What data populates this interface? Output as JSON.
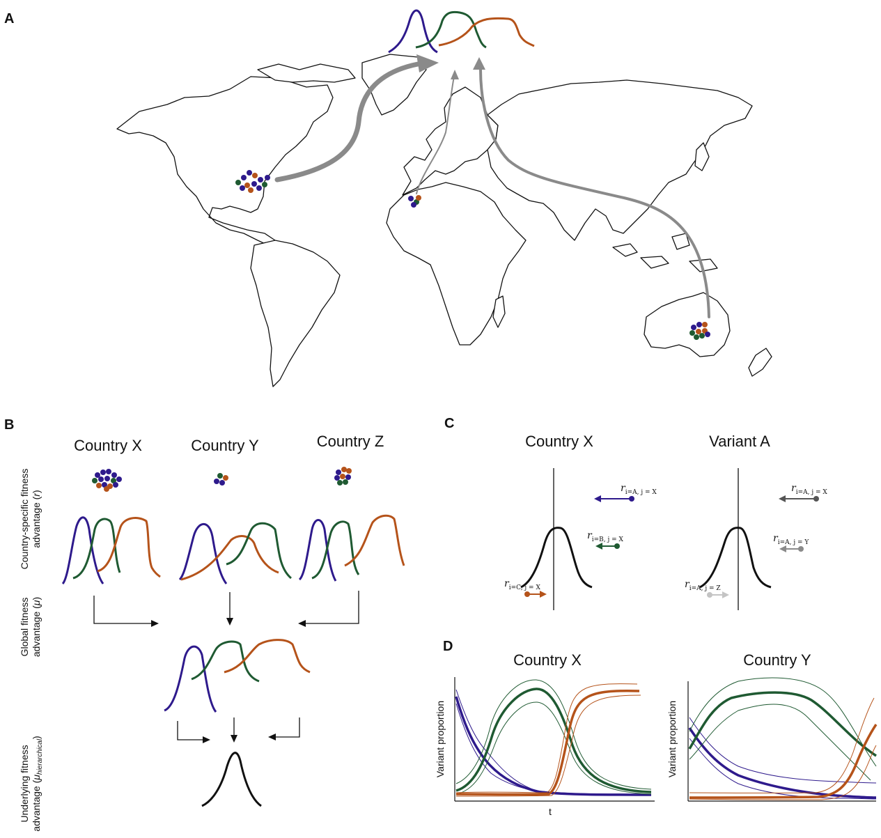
{
  "colors": {
    "variant_a": "#2e1a8c",
    "variant_b": "#1f5a32",
    "variant_c": "#b5531a",
    "arrow_gray": "#8a8a8a",
    "dark_gray": "#555555",
    "light_gray": "#c4c4c4",
    "black": "#111111"
  },
  "panels": {
    "a": {
      "letter": "A"
    },
    "b": {
      "letter": "B",
      "countries": [
        "Country X",
        "Country Y",
        "Country Z"
      ],
      "row_labels": {
        "r_line1": "Country-specific fitness",
        "r_line2": "advantage (",
        "r_sym": "r",
        "r_end": ")",
        "mu_line1": "Global fitness",
        "mu_line2": "advantage (",
        "mu_sym": "μ",
        "mu_end": ")",
        "h_line1": "Underlying fitness",
        "h_line2": "advantage (",
        "h_sym": "μ",
        "h_sub": "hierarchical",
        "h_end": ")"
      }
    },
    "c": {
      "letter": "C",
      "left_title": "Country X",
      "right_title": "Variant A",
      "r_symbol": "r",
      "left_labels": [
        "i=A, j = X",
        "i=B, j = X",
        "i=C, j = X"
      ],
      "right_labels": [
        "i=A, j = X",
        "i=A, j = Y",
        "i=A, j = Z"
      ]
    },
    "d": {
      "letter": "D",
      "left_title": "Country X",
      "right_title": "Country Y",
      "ylabel": "Variant proportion",
      "xlabel": "t"
    }
  }
}
